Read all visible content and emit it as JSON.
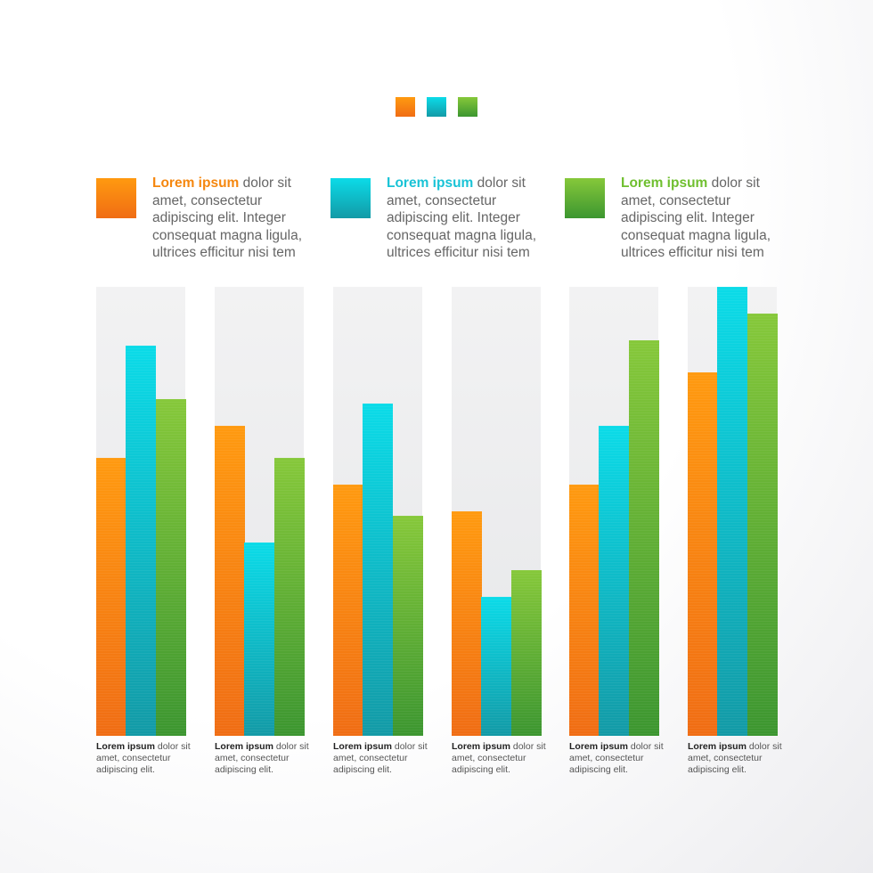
{
  "legend": [
    {
      "bold": "Lorem ipsum",
      "text": " dolor sit amet, consectetur adipiscing elit. Integer consequat magna ligula, ultrices efficitur nisi tem",
      "color": "#f5870f"
    },
    {
      "bold": "Lorem ipsum",
      "text": " dolor sit amet, consectetur adipiscing elit. Integer consequat magna ligula, ultrices efficitur nisi tem",
      "color": "#19c3d6"
    },
    {
      "bold": "Lorem ipsum",
      "text": " dolor sit amet, consectetur adipiscing elit. Integer consequat magna ligula, ultrices efficitur nisi tem",
      "color": "#6fbf2f"
    }
  ],
  "captions": [
    {
      "bold": "Lorem ipsum",
      "text": " dolor sit amet, consectetur adipiscing elit."
    },
    {
      "bold": "Lorem ipsum",
      "text": " dolor sit amet, consectetur adipiscing elit."
    },
    {
      "bold": "Lorem ipsum",
      "text": " dolor sit amet, consectetur adipiscing elit."
    },
    {
      "bold": "Lorem ipsum",
      "text": " dolor sit amet, consectetur adipiscing elit."
    },
    {
      "bold": "Lorem ipsum",
      "text": " dolor sit amet, consectetur adipiscing elit."
    },
    {
      "bold": "Lorem ipsum",
      "text": " dolor sit amet, consectetur adipiscing elit."
    }
  ],
  "colors": {
    "orange": [
      "#ff9a10",
      "#f06d14"
    ],
    "cyan": [
      "#0bdbe8",
      "#139aa6"
    ],
    "green": [
      "#86c83a",
      "#3c9630"
    ]
  },
  "chart_data": {
    "type": "bar",
    "ylim": [
      0,
      100
    ],
    "grid": false,
    "legend_position": "top",
    "series": [
      {
        "values": [
          62,
          69,
          56,
          50,
          56,
          81
        ],
        "color": "#f5870f"
      },
      {
        "values": [
          87,
          43,
          74,
          31,
          69,
          100
        ],
        "color": "#19c3d6"
      },
      {
        "values": [
          75,
          62,
          49,
          37,
          88,
          94
        ],
        "color": "#6fbf2f"
      }
    ]
  }
}
